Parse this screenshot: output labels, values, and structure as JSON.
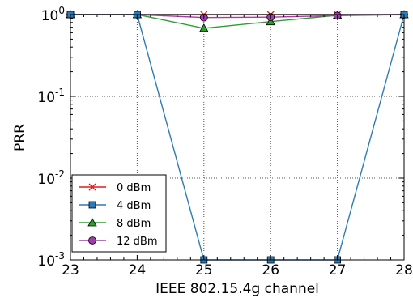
{
  "chart_data": {
    "type": "line",
    "xlabel": "IEEE 802.15.4g channel",
    "ylabel": "PRR",
    "x": [
      23,
      24,
      25,
      26,
      27,
      28
    ],
    "xlim": [
      23,
      28
    ],
    "ylim": [
      0.001,
      1
    ],
    "yscale": "log",
    "x_tick_labels": [
      "23",
      "24",
      "25",
      "26",
      "27",
      "28"
    ],
    "y_ticks": [
      {
        "value": 0.001,
        "base": "10",
        "exp": "-3"
      },
      {
        "value": 0.01,
        "base": "10",
        "exp": "-2"
      },
      {
        "value": 0.1,
        "base": "10",
        "exp": "-1"
      },
      {
        "value": 1,
        "base": "10",
        "exp": "0"
      }
    ],
    "grid": true,
    "legend_position": "lower-left",
    "series": [
      {
        "name": "0 dBm",
        "color": "#e41a1c",
        "marker": "x",
        "values": [
          1.0,
          1.0,
          1.0,
          1.0,
          1.0,
          1.0
        ]
      },
      {
        "name": "4 dBm",
        "color": "#2b7bba",
        "marker": "square",
        "values": [
          1.0,
          1.0,
          0.001,
          0.001,
          0.001,
          1.0
        ]
      },
      {
        "name": "8 dBm",
        "color": "#2ca02c",
        "marker": "triangle",
        "values": [
          1.0,
          1.0,
          0.68,
          0.82,
          0.98,
          1.0
        ]
      },
      {
        "name": "12 dBm",
        "color": "#9e3fa8",
        "marker": "circle",
        "values": [
          1.0,
          1.0,
          0.92,
          0.93,
          0.97,
          1.0
        ]
      }
    ]
  }
}
